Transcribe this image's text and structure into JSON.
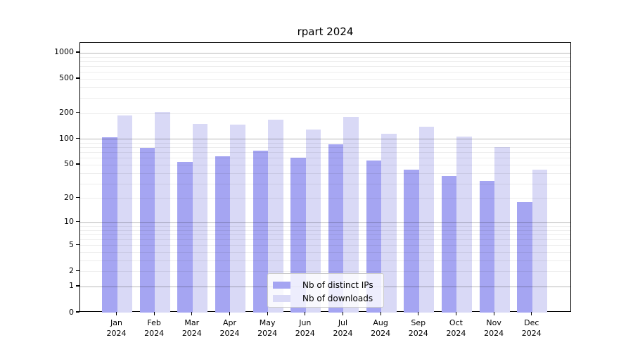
{
  "chart_data": {
    "type": "bar",
    "title": "rpart 2024",
    "xlabel": "",
    "ylabel": "",
    "year": "2024",
    "categories": [
      "Jan",
      "Feb",
      "Mar",
      "Apr",
      "May",
      "Jun",
      "Jul",
      "Aug",
      "Sep",
      "Oct",
      "Nov",
      "Dec"
    ],
    "series": [
      {
        "name": "Nb of distinct IPs",
        "slug": "distinct-ips",
        "color": "#a5a5f2",
        "values": [
          104,
          79,
          54,
          63,
          73,
          60,
          87,
          56,
          44,
          37,
          32,
          18
        ]
      },
      {
        "name": "Nb of downloads",
        "slug": "downloads",
        "color": "#d9d9f6",
        "values": [
          189,
          207,
          150,
          148,
          168,
          128,
          182,
          115,
          140,
          107,
          80,
          44
        ]
      }
    ],
    "yscale": "log1p",
    "yticks": [
      0,
      1,
      2,
      5,
      10,
      20,
      50,
      100,
      200,
      500,
      1000
    ],
    "ylim": [
      0,
      1290
    ],
    "grid": true,
    "gridline_major_values": [
      1,
      10,
      100,
      1000
    ],
    "legend_position": "lower center",
    "colors": {
      "axis": "#000000",
      "grid_major": "#b8b8b8",
      "grid_minor": "#ebebeb",
      "background": "#ffffff"
    }
  }
}
